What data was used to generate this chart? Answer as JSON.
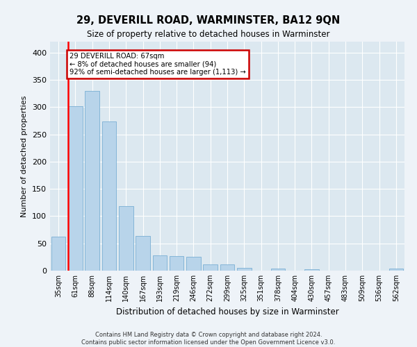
{
  "title": "29, DEVERILL ROAD, WARMINSTER, BA12 9QN",
  "subtitle": "Size of property relative to detached houses in Warminster",
  "xlabel": "Distribution of detached houses by size in Warminster",
  "ylabel": "Number of detached properties",
  "footer1": "Contains HM Land Registry data © Crown copyright and database right 2024.",
  "footer2": "Contains public sector information licensed under the Open Government Licence v3.0.",
  "bar_color": "#b8d4ea",
  "bar_edge_color": "#7aafd4",
  "annotation_line1": "29 DEVERILL ROAD: 67sqm",
  "annotation_line2": "← 8% of detached houses are smaller (94)",
  "annotation_line3": "92% of semi-detached houses are larger (1,113) →",
  "annotation_box_color": "#cc0000",
  "categories": [
    "35sqm",
    "61sqm",
    "88sqm",
    "114sqm",
    "140sqm",
    "167sqm",
    "193sqm",
    "219sqm",
    "246sqm",
    "272sqm",
    "299sqm",
    "325sqm",
    "351sqm",
    "378sqm",
    "404sqm",
    "430sqm",
    "457sqm",
    "483sqm",
    "509sqm",
    "536sqm",
    "562sqm"
  ],
  "values": [
    63,
    301,
    329,
    273,
    119,
    64,
    28,
    27,
    25,
    11,
    11,
    5,
    0,
    4,
    0,
    3,
    0,
    0,
    0,
    0,
    4
  ],
  "ylim": [
    0,
    420
  ],
  "yticks": [
    0,
    50,
    100,
    150,
    200,
    250,
    300,
    350,
    400
  ],
  "fig_bg_color": "#eef3f8",
  "ax_bg_color": "#dce8f0",
  "grid_color": "#ffffff",
  "property_bar_index": 1
}
